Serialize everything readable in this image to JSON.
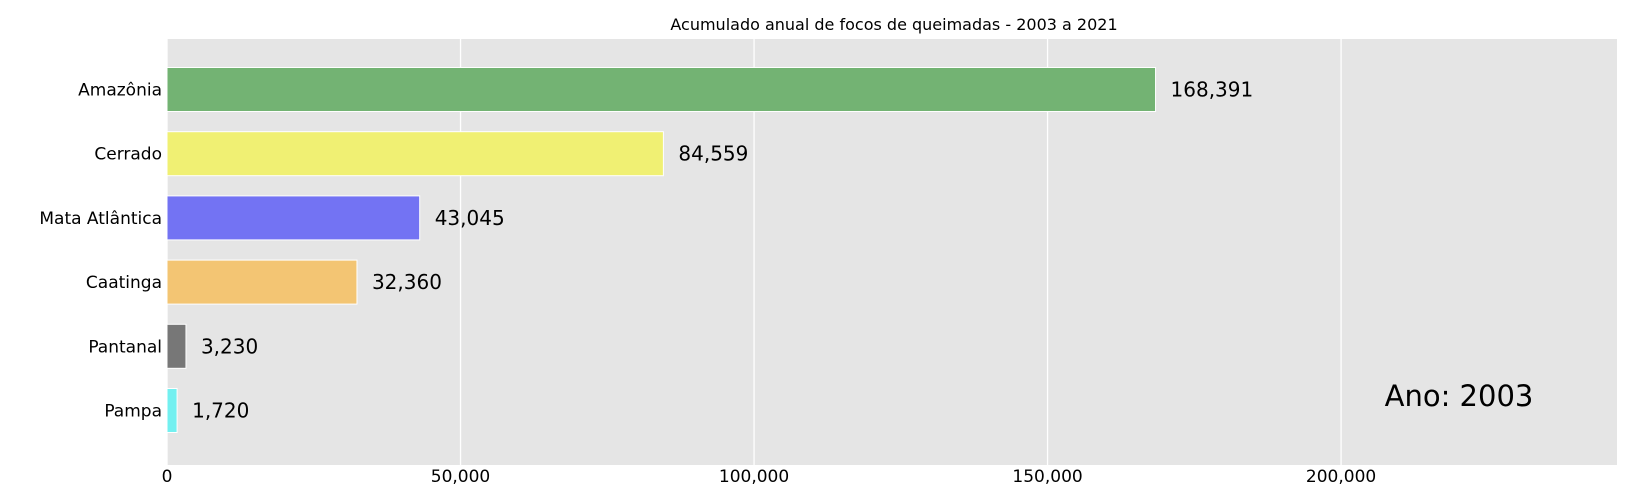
{
  "chart_data": {
    "type": "bar",
    "orientation": "horizontal",
    "title": "Acumulado anual de focos de queimadas - 2003 a 2021",
    "xlabel": "",
    "ylabel": "",
    "categories": [
      "Amazônia",
      "Cerrado",
      "Mata Atlântica",
      "Caatinga",
      "Pantanal",
      "Pampa"
    ],
    "values": [
      168391,
      84559,
      43045,
      32360,
      3230,
      1720
    ],
    "value_labels": [
      "168,391",
      "84,559",
      "43,045",
      "32,360",
      "3,230",
      "1,720"
    ],
    "colors": [
      "#73b373",
      "#f0f073",
      "#7373f3",
      "#f3c573",
      "#777777",
      "#73f0f0"
    ],
    "xlim": [
      0,
      247000
    ],
    "xticks": [
      0,
      50000,
      100000,
      150000,
      200000
    ],
    "xtick_labels": [
      "0",
      "50,000",
      "100,000",
      "150,000",
      "200,000"
    ],
    "grid": true,
    "grid_axis": "x",
    "background": "#e5e5e5",
    "annotation": "Ano: 2003",
    "annotation_position": "bottom-right"
  }
}
